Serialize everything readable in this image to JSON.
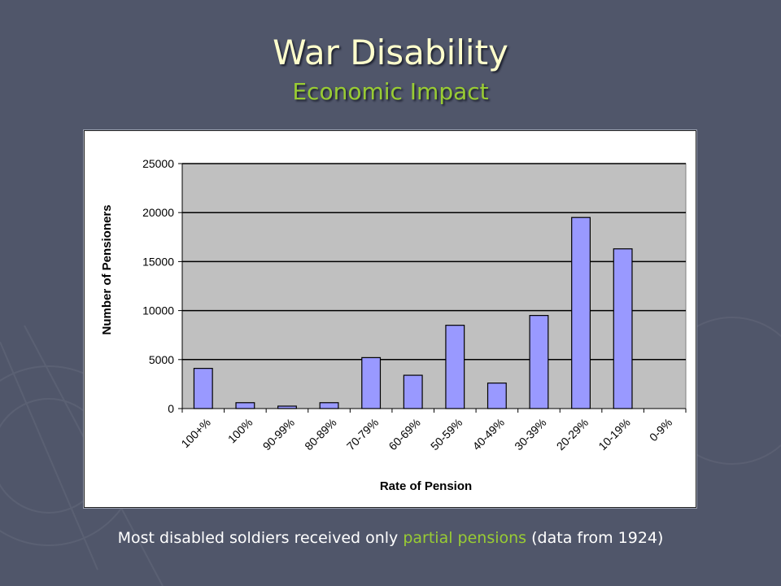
{
  "slide": {
    "title": "War Disability",
    "subtitle": "Economic Impact",
    "caption_before": "Most disabled soldiers received only ",
    "caption_highlight": "partial pensions",
    "caption_after": " (data from 1924)",
    "colors": {
      "background": "#50566a",
      "title": "#ffffcc",
      "accent": "#99cc33",
      "plot_area": "#c0c0c0",
      "bar": "#9999ff"
    }
  },
  "chart_data": {
    "type": "bar",
    "title": "",
    "xlabel": "Rate of Pension",
    "ylabel": "Number of Pensioners",
    "categories": [
      "100+%",
      "100%",
      "90-99%",
      "80-89%",
      "70-79%",
      "60-69%",
      "50-59%",
      "40-49%",
      "30-39%",
      "20-29%",
      "10-19%",
      "0-9%"
    ],
    "series": [
      {
        "values": [
          4100,
          600,
          250,
          600,
          5200,
          3400,
          8500,
          2600,
          9500,
          19500,
          16300,
          0
        ]
      }
    ],
    "ylim": [
      0,
      25000
    ],
    "yticks": [
      0,
      5000,
      10000,
      15000,
      20000,
      25000
    ],
    "grid": true,
    "legend": "none"
  }
}
